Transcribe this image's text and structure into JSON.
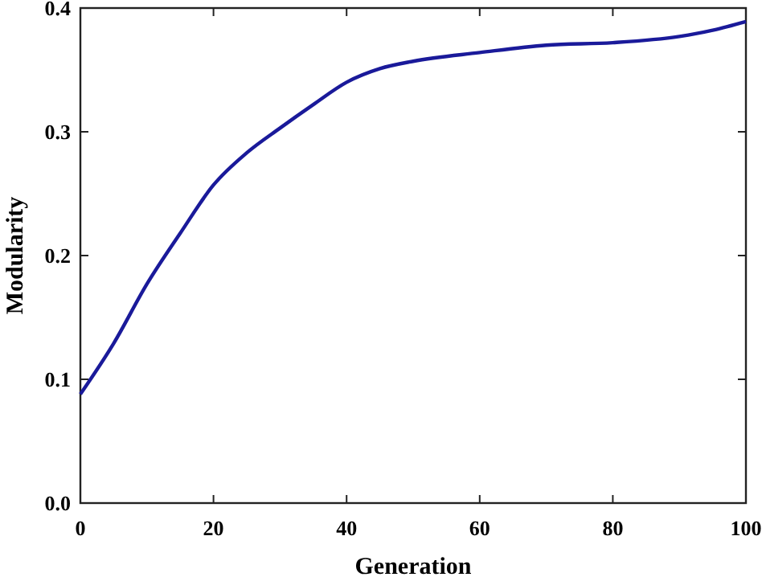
{
  "chart_data": {
    "type": "line",
    "xlabel": "Generation",
    "ylabel": "Modularity",
    "xlim": [
      0,
      100
    ],
    "ylim": [
      0,
      0.4
    ],
    "xticks": [
      0,
      20,
      40,
      60,
      80,
      100
    ],
    "yticks": [
      {
        "value": 0,
        "label": "0.0"
      },
      0.1,
      0.2,
      0.3,
      0.4
    ],
    "grid": false,
    "marker": "none",
    "line_style": "solid",
    "x": [
      0,
      5,
      10,
      15,
      20,
      25,
      30,
      35,
      40,
      45,
      50,
      60,
      70,
      80,
      90,
      95,
      100
    ],
    "series": [
      {
        "color": "#1a1a9a",
        "values": [
          0.088,
          0.129,
          0.177,
          0.218,
          0.257,
          0.283,
          0.303,
          0.322,
          0.34,
          0.351,
          0.357,
          0.364,
          0.37,
          0.372,
          0.377,
          0.382,
          0.389
        ]
      }
    ]
  }
}
